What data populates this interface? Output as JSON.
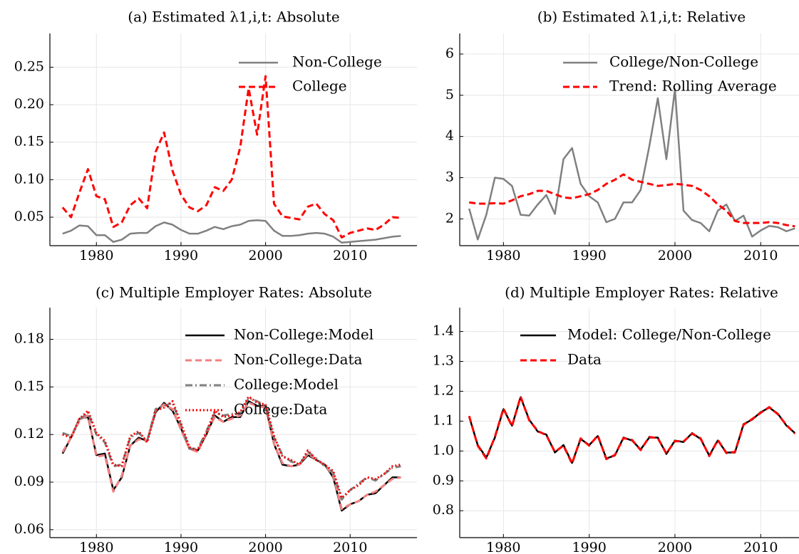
{
  "chart_data": [
    {
      "type": "line",
      "title": "(a) Estimated λ1,i,t: Absolute",
      "x": [
        1976,
        1977,
        1978,
        1979,
        1980,
        1981,
        1982,
        1983,
        1984,
        1985,
        1986,
        1987,
        1988,
        1989,
        1990,
        1991,
        1992,
        1993,
        1994,
        1995,
        1996,
        1997,
        1998,
        1999,
        2000,
        2001,
        2002,
        2003,
        2004,
        2005,
        2006,
        2007,
        2008,
        2009,
        2010,
        2011,
        2012,
        2013,
        2014,
        2015,
        2016
      ],
      "xlim": [
        1974.5,
        2017.9
      ],
      "xticks": [
        1980,
        1990,
        2000,
        2010
      ],
      "ylim": [
        0.012,
        0.295
      ],
      "yticks": [
        0.05,
        {
          "value": 0.1,
          "label": "0.10"
        },
        0.15,
        {
          "value": 0.2,
          "label": "0.20"
        },
        0.25
      ],
      "grid": true,
      "legend": "upper right",
      "series": [
        {
          "name": "Non-College",
          "color": "#808080",
          "linestyle": "solid",
          "values": [
            0.028,
            0.032,
            0.039,
            0.038,
            0.026,
            0.026,
            0.017,
            0.02,
            0.028,
            0.029,
            0.029,
            0.038,
            0.043,
            0.04,
            0.033,
            0.028,
            0.028,
            0.032,
            0.037,
            0.034,
            0.038,
            0.04,
            0.045,
            0.046,
            0.045,
            0.032,
            0.025,
            0.025,
            0.026,
            0.028,
            0.029,
            0.028,
            0.024,
            0.016,
            0.017,
            0.018,
            0.019,
            0.02,
            0.022,
            0.024,
            0.025
          ]
        },
        {
          "name": "College",
          "color": "#ff0000",
          "linestyle": "dashed",
          "values": [
            0.063,
            0.05,
            0.083,
            0.114,
            0.078,
            0.074,
            0.037,
            0.043,
            0.066,
            0.075,
            0.062,
            0.137,
            0.163,
            0.112,
            0.08,
            0.063,
            0.058,
            0.066,
            0.09,
            0.085,
            0.1,
            0.143,
            0.222,
            0.16,
            0.238,
            0.068,
            0.051,
            0.049,
            0.047,
            0.064,
            0.068,
            0.054,
            0.046,
            0.023,
            0.029,
            0.032,
            0.035,
            0.033,
            0.04,
            0.05,
            0.049
          ]
        }
      ]
    },
    {
      "type": "line",
      "title": "(b) Estimated λ1,i,t: Relative",
      "x": [
        1976,
        1977,
        1978,
        1979,
        1980,
        1981,
        1982,
        1983,
        1984,
        1985,
        1986,
        1987,
        1988,
        1989,
        1990,
        1991,
        1992,
        1993,
        1994,
        1995,
        1996,
        1997,
        1998,
        1999,
        2000,
        2001,
        2002,
        2003,
        2004,
        2005,
        2006,
        2007,
        2008,
        2009,
        2010,
        2011,
        2012,
        2013,
        2014
      ],
      "xlim": [
        1974.9,
        2014.8
      ],
      "xticks": [
        1980,
        1990,
        2000,
        2010
      ],
      "ylim": [
        1.35,
        6.5
      ],
      "yticks": [
        2,
        3,
        4,
        5,
        6
      ],
      "grid": true,
      "legend": "upper right",
      "series": [
        {
          "name": "College/Non-College",
          "color": "#808080",
          "linestyle": "solid",
          "values": [
            2.25,
            1.5,
            2.1,
            3.0,
            2.97,
            2.8,
            2.1,
            2.08,
            2.35,
            2.58,
            2.12,
            3.45,
            3.72,
            2.85,
            2.55,
            2.4,
            1.92,
            2.0,
            2.4,
            2.4,
            2.7,
            3.75,
            4.93,
            3.45,
            5.15,
            2.2,
            1.97,
            1.9,
            1.7,
            2.2,
            2.35,
            1.95,
            2.08,
            1.57,
            1.72,
            1.83,
            1.8,
            1.7,
            1.77
          ]
        },
        {
          "name": "Trend: Rolling Average",
          "color": "#ff0000",
          "linestyle": "dashed",
          "values": [
            2.4,
            2.37,
            2.37,
            2.38,
            2.37,
            2.45,
            2.55,
            2.6,
            2.68,
            2.68,
            2.6,
            2.52,
            2.5,
            2.55,
            2.6,
            2.7,
            2.85,
            2.95,
            3.08,
            2.95,
            2.9,
            2.85,
            2.8,
            2.82,
            2.85,
            2.83,
            2.8,
            2.7,
            2.55,
            2.35,
            2.2,
            1.95,
            1.9,
            1.9,
            1.9,
            1.92,
            1.9,
            1.85,
            1.82
          ]
        }
      ]
    },
    {
      "type": "line",
      "title": "(c) Multiple Employer Rates: Absolute",
      "x": [
        1976,
        1977,
        1978,
        1979,
        1980,
        1981,
        1982,
        1983,
        1984,
        1985,
        1986,
        1987,
        1988,
        1989,
        1990,
        1991,
        1992,
        1993,
        1994,
        1995,
        1996,
        1997,
        1998,
        1999,
        2000,
        2001,
        2002,
        2003,
        2004,
        2005,
        2006,
        2007,
        2008,
        2009,
        2010,
        2011,
        2012,
        2013,
        2014,
        2015,
        2016
      ],
      "xlim": [
        1974.5,
        2017.9
      ],
      "xticks": [
        1980,
        1990,
        2000,
        2010
      ],
      "ylim": [
        0.055,
        0.2
      ],
      "yticks": [
        0.06,
        0.09,
        0.12,
        0.15,
        0.18
      ],
      "grid": true,
      "legend": "upper right",
      "series": [
        {
          "name": "Non-College:Model",
          "color": "#000000",
          "linestyle": "solid",
          "values": [
            0.108,
            0.118,
            0.13,
            0.131,
            0.107,
            0.108,
            0.085,
            0.093,
            0.113,
            0.118,
            0.116,
            0.134,
            0.14,
            0.135,
            0.124,
            0.111,
            0.11,
            0.12,
            0.132,
            0.128,
            0.131,
            0.131,
            0.141,
            0.138,
            0.138,
            0.114,
            0.101,
            0.1,
            0.101,
            0.107,
            0.104,
            0.101,
            0.093,
            0.072,
            0.076,
            0.078,
            0.082,
            0.083,
            0.088,
            0.093,
            0.093
          ]
        },
        {
          "name": "Non-College:Data",
          "color": "#f08080",
          "linestyle": "dashed",
          "values": [
            0.109,
            0.118,
            0.129,
            0.132,
            0.106,
            0.107,
            0.084,
            0.094,
            0.113,
            0.117,
            0.116,
            0.135,
            0.139,
            0.136,
            0.123,
            0.111,
            0.109,
            0.121,
            0.131,
            0.128,
            0.13,
            0.132,
            0.14,
            0.138,
            0.137,
            0.114,
            0.102,
            0.1,
            0.101,
            0.108,
            0.104,
            0.101,
            0.094,
            0.073,
            0.076,
            0.078,
            0.082,
            0.084,
            0.088,
            0.092,
            0.093
          ]
        },
        {
          "name": "College:Model",
          "color": "#808080",
          "linestyle": "dashdot",
          "values": [
            0.121,
            0.119,
            0.129,
            0.134,
            0.12,
            0.115,
            0.1,
            0.101,
            0.118,
            0.121,
            0.116,
            0.136,
            0.138,
            0.14,
            0.126,
            0.111,
            0.111,
            0.122,
            0.134,
            0.132,
            0.133,
            0.133,
            0.143,
            0.141,
            0.138,
            0.118,
            0.107,
            0.103,
            0.101,
            0.109,
            0.105,
            0.1,
            0.096,
            0.079,
            0.085,
            0.089,
            0.093,
            0.091,
            0.095,
            0.099,
            0.1
          ]
        },
        {
          "name": "College:Data",
          "color": "#ff0000",
          "linestyle": "dotted",
          "values": [
            0.12,
            0.118,
            0.13,
            0.135,
            0.121,
            0.116,
            0.101,
            0.1,
            0.119,
            0.122,
            0.115,
            0.135,
            0.137,
            0.141,
            0.127,
            0.112,
            0.11,
            0.121,
            0.135,
            0.131,
            0.132,
            0.134,
            0.144,
            0.14,
            0.139,
            0.119,
            0.106,
            0.104,
            0.101,
            0.11,
            0.104,
            0.101,
            0.097,
            0.08,
            0.085,
            0.088,
            0.093,
            0.092,
            0.095,
            0.1,
            0.101
          ]
        }
      ]
    },
    {
      "type": "line",
      "title": "(d) Multiple Employer Rates: Relative",
      "x": [
        1976,
        1977,
        1978,
        1979,
        1980,
        1981,
        1982,
        1983,
        1984,
        1985,
        1986,
        1987,
        1988,
        1989,
        1990,
        1991,
        1992,
        1993,
        1994,
        1995,
        1996,
        1997,
        1998,
        1999,
        2000,
        2001,
        2002,
        2003,
        2004,
        2005,
        2006,
        2007,
        2008,
        2009,
        2010,
        2011,
        2012,
        2013,
        2014
      ],
      "xlim": [
        1974.9,
        2014.8
      ],
      "xticks": [
        1980,
        1990,
        2000,
        2010
      ],
      "ylim": [
        0.71,
        1.48
      ],
      "yticks": [
        0.8,
        0.9,
        {
          "value": 1.0,
          "label": "1.0"
        },
        1.1,
        1.2,
        1.3,
        1.4
      ],
      "grid": true,
      "legend": "upper right",
      "series": [
        {
          "name": "Model: College/Non-College",
          "color": "#000000",
          "linestyle": "solid",
          "values": [
            1.115,
            1.02,
            0.978,
            1.045,
            1.14,
            1.085,
            1.18,
            1.105,
            1.065,
            1.055,
            0.995,
            1.02,
            0.96,
            1.04,
            1.02,
            1.05,
            0.975,
            0.985,
            1.045,
            1.035,
            1.005,
            1.045,
            1.045,
            0.99,
            1.035,
            1.03,
            1.06,
            1.04,
            0.985,
            1.035,
            0.995,
            0.995,
            1.09,
            1.105,
            1.13,
            1.145,
            1.125,
            1.085,
            1.06
          ]
        },
        {
          "name": "Data",
          "color": "#ff0000",
          "linestyle": "dashed",
          "values": [
            1.117,
            1.018,
            0.975,
            1.047,
            1.142,
            1.083,
            1.182,
            1.103,
            1.067,
            1.053,
            0.997,
            1.018,
            0.958,
            1.042,
            1.018,
            1.052,
            0.973,
            0.987,
            1.043,
            1.037,
            1.003,
            1.047,
            1.043,
            0.992,
            1.033,
            1.032,
            1.058,
            1.042,
            0.983,
            1.037,
            0.993,
            0.997,
            1.088,
            1.107,
            1.128,
            1.147,
            1.123,
            1.087,
            1.058
          ]
        }
      ]
    }
  ]
}
